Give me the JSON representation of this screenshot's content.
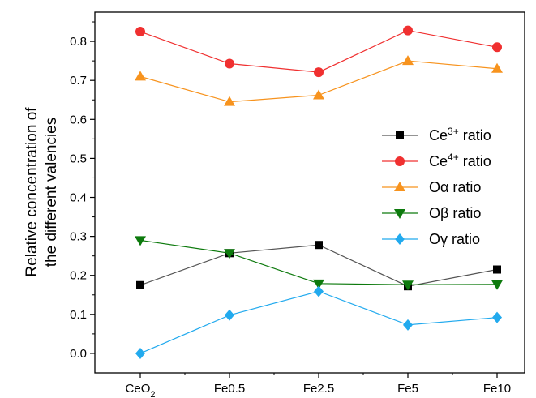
{
  "chart_data": {
    "type": "line",
    "categories": [
      "CeO",
      "Fe0.5",
      "Fe2.5",
      "Fe5",
      "Fe10"
    ],
    "category_subscripts": [
      "2",
      "",
      "",
      "",
      ""
    ],
    "ylabel_lines": [
      "Relative concentration of",
      "the different valencies"
    ],
    "xlabel": "",
    "ylim": [
      -0.05,
      0.875
    ],
    "yticks": [
      0.0,
      0.1,
      0.2,
      0.3,
      0.4,
      0.5,
      0.6,
      0.7,
      0.8
    ],
    "ytick_labels": [
      "0.0",
      "0.1",
      "0.2",
      "0.3",
      "0.4",
      "0.5",
      "0.6",
      "0.7",
      "0.8"
    ],
    "grid": false,
    "legend_position": "right",
    "series": [
      {
        "name": "Ce",
        "name_sup": "3+",
        "name_suffix": " ratio",
        "marker": "square",
        "color": "#000000",
        "line_color": "#555555",
        "values": [
          0.175,
          0.257,
          0.278,
          0.172,
          0.215
        ]
      },
      {
        "name": "Ce",
        "name_sup": "4+",
        "name_suffix": " ratio",
        "marker": "circle",
        "color": "#f03030",
        "line_color": "#f03030",
        "values": [
          0.825,
          0.743,
          0.721,
          0.828,
          0.785
        ]
      },
      {
        "name": "Oα",
        "name_sup": "",
        "name_suffix": " ratio",
        "marker": "triangle-up",
        "color": "#f7931e",
        "line_color": "#f7931e",
        "values": [
          0.71,
          0.645,
          0.662,
          0.75,
          0.73
        ]
      },
      {
        "name": "Oβ",
        "name_sup": "",
        "name_suffix": " ratio",
        "marker": "triangle-down",
        "color": "#0d7a0d",
        "line_color": "#0d7a0d",
        "values": [
          0.29,
          0.257,
          0.179,
          0.176,
          0.177
        ]
      },
      {
        "name": "Oγ",
        "name_sup": "",
        "name_suffix": " ratio",
        "marker": "diamond",
        "color": "#22aaee",
        "line_color": "#22aaee",
        "values": [
          0.0,
          0.098,
          0.159,
          0.073,
          0.092
        ]
      }
    ]
  }
}
